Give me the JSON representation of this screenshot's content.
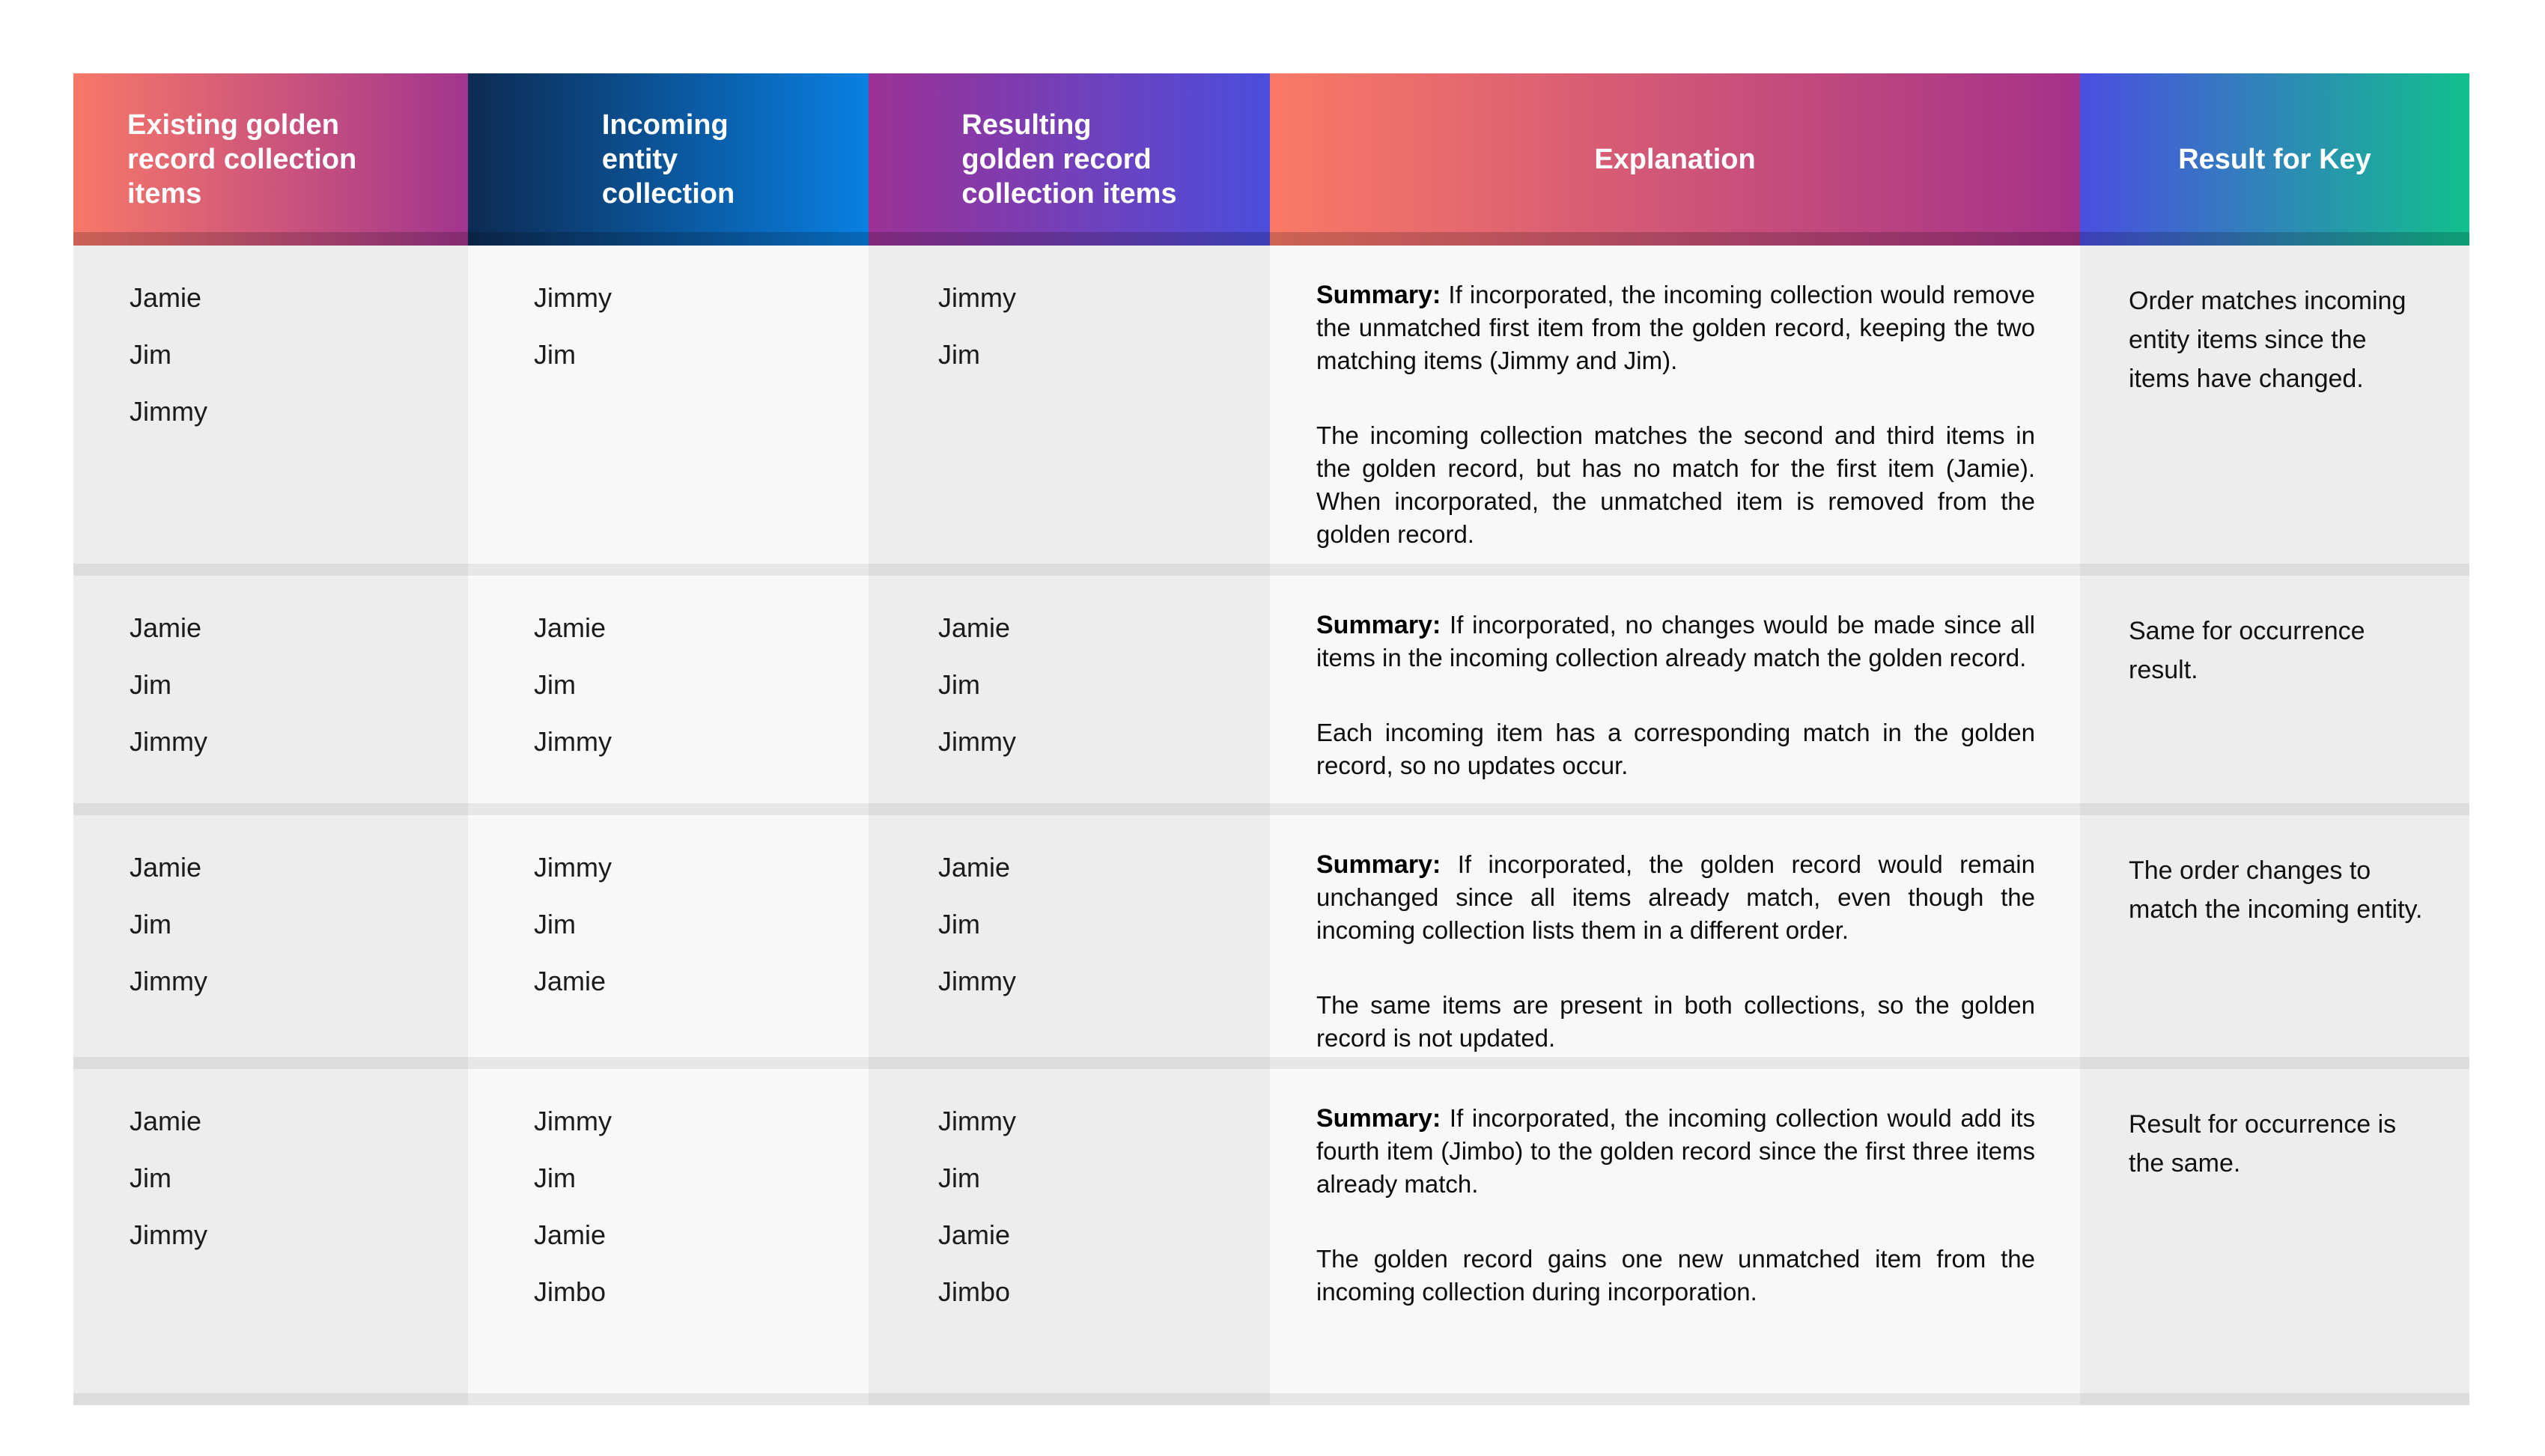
{
  "colors": {
    "page_background": "#ffffff",
    "column_background_dark": "#ededed",
    "column_background_light": "#f8f8f8",
    "divider_shadow": "#dddddd",
    "header_text": "#ffffff",
    "body_text": "#1b1b1b"
  },
  "header": {
    "columns": [
      {
        "label": "Existing golden\nrecord collection\nitems",
        "gradient": [
          "#f87868",
          "#a2358e"
        ]
      },
      {
        "label": "Incoming\nentity\ncollection",
        "gradient": [
          "#0d2b53",
          "#0980e2"
        ]
      },
      {
        "label": "Resulting\ngolden record\ncollection items",
        "gradient": [
          "#9c3296",
          "#4b4edc"
        ]
      },
      {
        "label": "Explanation",
        "gradient": [
          "#fa7a66",
          "#a43189"
        ]
      },
      {
        "label": "Result for Key",
        "gradient": [
          "#4b4ee0",
          "#12c08d"
        ]
      }
    ]
  },
  "rows": [
    {
      "existing": [
        "Jamie",
        "Jim",
        "Jimmy"
      ],
      "incoming": [
        "Jimmy",
        "Jim"
      ],
      "resulting": [
        "Jimmy",
        "Jim"
      ],
      "explanation": {
        "summary_label": "Summary:",
        "summary_text": "If incorporated, the incoming collection would remove the unmatched first item from the golden record, keeping the two matching items (Jimmy and Jim).",
        "detail": "The incoming collection matches the second and third items in the golden record, but has no match for the first item (Jamie). When incorporated, the unmatched item is removed from the golden record."
      },
      "result": "Order matches incoming\nentity items since the\nitems have changed."
    },
    {
      "existing": [
        "Jamie",
        "Jim",
        "Jimmy"
      ],
      "incoming": [
        "Jamie",
        "Jim",
        "Jimmy"
      ],
      "resulting": [
        "Jamie",
        "Jim",
        "Jimmy"
      ],
      "explanation": {
        "summary_label": "Summary:",
        "summary_text": "If incorporated, no changes would be made since all items in the incoming collection already match the golden record.",
        "detail": "Each incoming item has a corresponding match in the golden record, so no updates occur."
      },
      "result": "Same for occurrence result."
    },
    {
      "existing": [
        "Jamie",
        "Jim",
        "Jimmy"
      ],
      "incoming": [
        "Jimmy",
        "Jim",
        "Jamie"
      ],
      "resulting": [
        "Jamie",
        "Jim",
        "Jimmy"
      ],
      "explanation": {
        "summary_label": "Summary:",
        "summary_text": "If incorporated, the golden record would remain unchanged since all items already match, even though the incoming collection lists them in a different order.",
        "detail": "The same items are present in both collections, so the golden record is not updated."
      },
      "result": "The order changes to\nmatch the incoming entity."
    },
    {
      "existing": [
        "Jamie",
        "Jim",
        "Jimmy"
      ],
      "incoming": [
        "Jimmy",
        "Jim",
        "Jamie",
        "Jimbo"
      ],
      "resulting": [
        "Jimmy",
        "Jim",
        "Jamie",
        "Jimbo"
      ],
      "explanation": {
        "summary_label": "Summary:",
        "summary_text": "If incorporated, the incoming collection would add its fourth item (Jimbo) to the golden record since the first three items already match.",
        "detail": "The golden record gains one new unmatched item from the incoming collection during incorporation."
      },
      "result": "Result for occurrence is\nthe same."
    }
  ]
}
